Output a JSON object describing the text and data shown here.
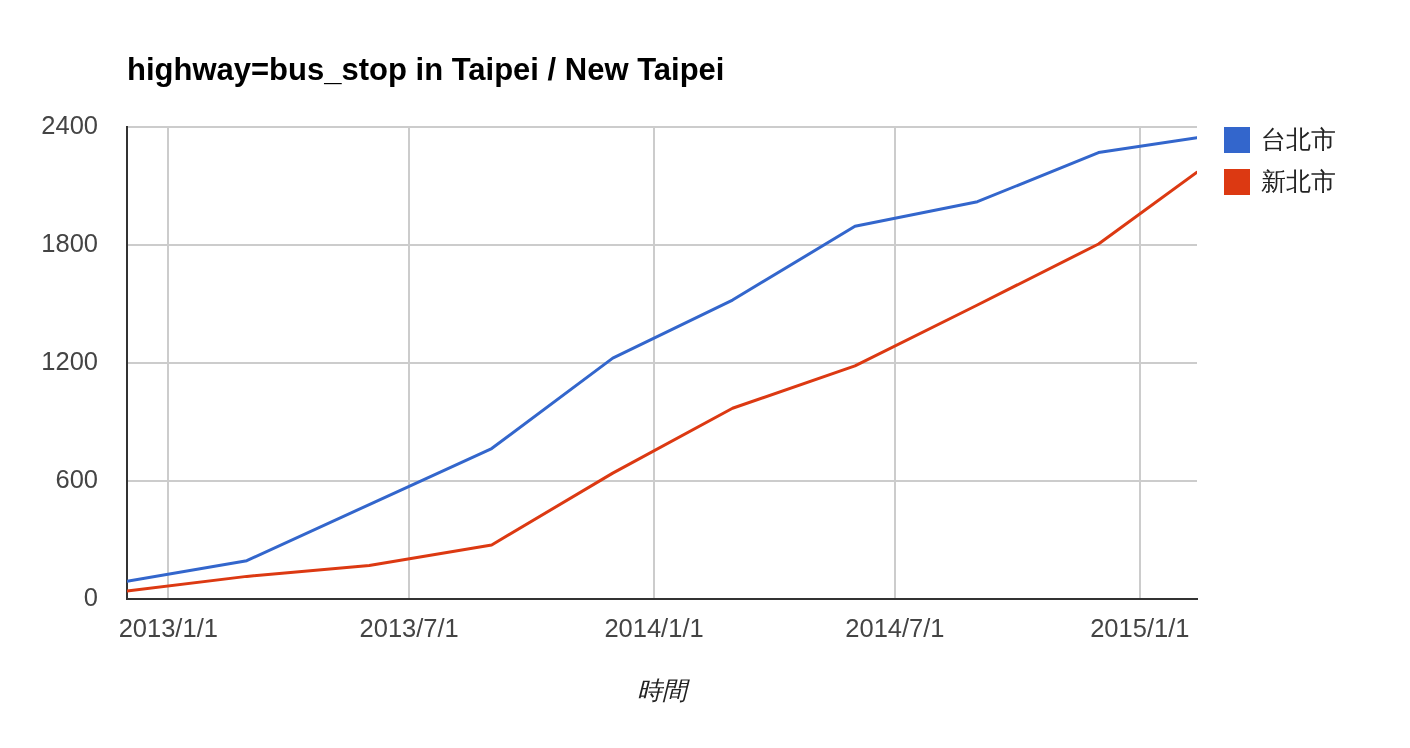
{
  "chart_data": {
    "type": "line",
    "title": "highway=bus_stop in Taipei / New Taipei",
    "xlabel": "時間",
    "x": [
      "2012-12-01",
      "2013-03-01",
      "2013-06-01",
      "2013-09-01",
      "2013-12-01",
      "2014-03-01",
      "2014-06-01",
      "2014-09-01",
      "2014-12-01",
      "2015-02-13"
    ],
    "series": [
      {
        "name": "台北市",
        "color": "#3366cc",
        "values": [
          90,
          195,
          480,
          765,
          1225,
          1520,
          1895,
          2020,
          2270,
          2345
        ]
      },
      {
        "name": "新北市",
        "color": "#dc3912",
        "values": [
          40,
          115,
          170,
          275,
          640,
          970,
          1185,
          1495,
          1805,
          2170
        ]
      }
    ],
    "xlim": [
      "2012-12-01",
      "2015-02-13"
    ],
    "xticks": [
      {
        "value": "2013-01-01",
        "label": "2013/1/1"
      },
      {
        "value": "2013-07-01",
        "label": "2013/7/1"
      },
      {
        "value": "2014-01-01",
        "label": "2014/1/1"
      },
      {
        "value": "2014-07-01",
        "label": "2014/7/1"
      },
      {
        "value": "2015-01-01",
        "label": "2015/1/1"
      }
    ],
    "ylim": [
      0,
      2400
    ],
    "yticks": [
      0,
      600,
      1200,
      1800,
      2400
    ],
    "grid": true,
    "legend": "right",
    "marker": "none"
  }
}
